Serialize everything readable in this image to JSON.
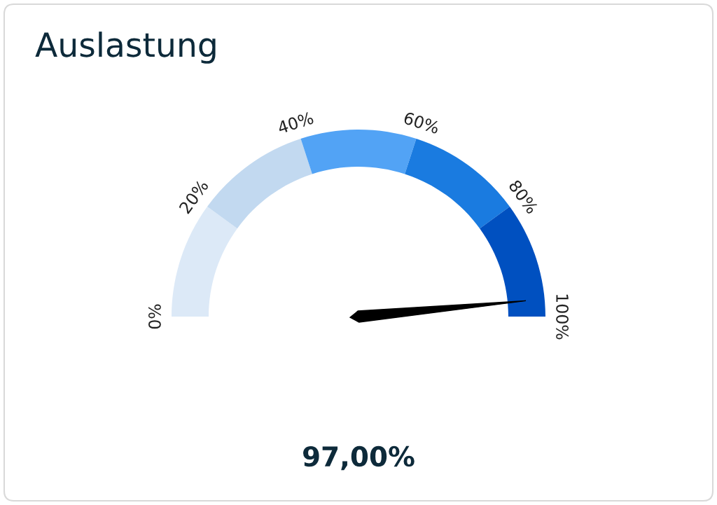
{
  "chart_data": {
    "type": "donut",
    "title": "Auslastung",
    "categories": [
      "0%",
      "20%",
      "40%",
      "60%",
      "80%"
    ],
    "values": [
      20,
      20,
      20,
      20,
      20
    ],
    "colors": [
      "#dce9f7",
      "#c2d9f0",
      "#52a3f5",
      "#1a7be0",
      "#0050c0"
    ],
    "needle": "80%",
    "annotations": [
      "100%",
      "97,00%"
    ]
  }
}
